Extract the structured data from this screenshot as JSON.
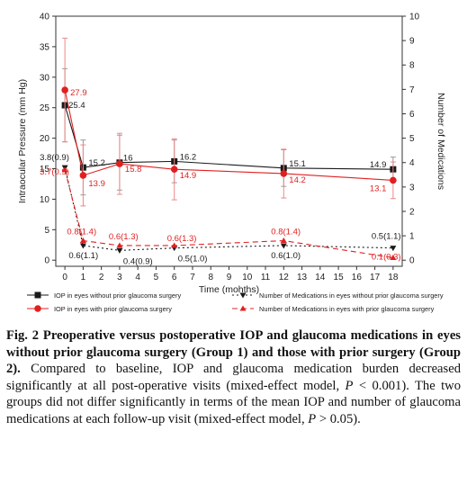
{
  "chart_data": {
    "type": "line",
    "xlabel": "Time (mohths)",
    "ylabel_left": "Intraocular Pressure (mm Hg)",
    "ylabel_right": "Number of Medications",
    "xlim": [
      -0.5,
      18.5
    ],
    "ylim_left": [
      -1,
      40
    ],
    "ylim_right": [
      -0.25,
      10
    ],
    "x_ticks": [
      "0",
      "1",
      "2",
      "3",
      "4",
      "5",
      "6",
      "7",
      "8",
      "9",
      "10",
      "11",
      "12",
      "13",
      "14",
      "15",
      "16",
      "17",
      "18"
    ],
    "y_ticks_left": [
      "0",
      "5",
      "10",
      "15",
      "20",
      "25",
      "30",
      "35",
      "40"
    ],
    "y_ticks_right": [
      "0",
      "1",
      "2",
      "3",
      "4",
      "5",
      "6",
      "7",
      "8",
      "9",
      "10"
    ],
    "grid": false,
    "legend_placement": "bottom",
    "x": [
      0,
      1,
      3,
      6,
      12,
      18
    ],
    "series": [
      {
        "name": "IOP in eyes without prior glaucoma surgery",
        "axis": "left",
        "color": "#1a1a1a",
        "marker": "square",
        "line": "solid",
        "values": [
          25.4,
          15.2,
          16,
          16.2,
          15.1,
          14.9
        ],
        "error": [
          6,
          4.5,
          4.5,
          3.5,
          3,
          2
        ],
        "labels": [
          "25.4",
          "15.2",
          "16",
          "16.2",
          "15.1",
          "14.9"
        ]
      },
      {
        "name": "IOP in eyes with prior glaucoma surgery",
        "axis": "left",
        "color": "#e02020",
        "marker": "circle",
        "line": "solid",
        "values": [
          27.9,
          13.9,
          15.8,
          14.9,
          14.2,
          13.1
        ],
        "error": [
          8.5,
          5,
          5,
          5,
          4,
          3
        ],
        "labels": [
          "27.9",
          "13.9",
          "15.8",
          "14.9",
          "14.2",
          "13.1"
        ]
      },
      {
        "name": "Number of Medications in eyes without prior glaucoma surgery",
        "axis": "right",
        "color": "#1a1a1a",
        "marker": "triangle-down",
        "line": "dotted",
        "values": [
          3.8,
          0.6,
          0.4,
          0.5,
          0.6,
          0.5
        ],
        "labels": [
          "3.8(0.9)",
          "0.6(1.1)",
          "0.4(0.9)",
          "0.5(1.0)",
          "0.6(1.0)",
          "0.5(1.1)"
        ]
      },
      {
        "name": "Number of Medications in eyes with prior glaucoma surgery",
        "axis": "right",
        "color": "#e02020",
        "marker": "triangle-up",
        "line": "dashed",
        "values": [
          3.7,
          0.8,
          0.6,
          0.6,
          0.8,
          0.1
        ],
        "labels": [
          "3.7(0.9)",
          "0.8(1.4)",
          "0.6(1.3)",
          "0.6(1.3)",
          "0.8(1.4)",
          "0.1(0.3)"
        ]
      }
    ]
  },
  "caption": {
    "bold": "Fig. 2 Preoperative versus postoperative IOP and glaucoma medications in eyes without prior glaucoma surgery (Group 1) and those with prior surgery (Group 2).",
    "text1": " Compared to baseline, IOP and glaucoma medication burden decreased significantly at all post-operative visits (mixed-effect model, ",
    "p1": "P",
    "text2": " < 0.001). The two groups did not differ significantly in terms of the mean IOP and number of glaucoma medications at each follow-up visit (mixed-effect model, ",
    "p2": "P",
    "text3": " > 0.05)."
  }
}
